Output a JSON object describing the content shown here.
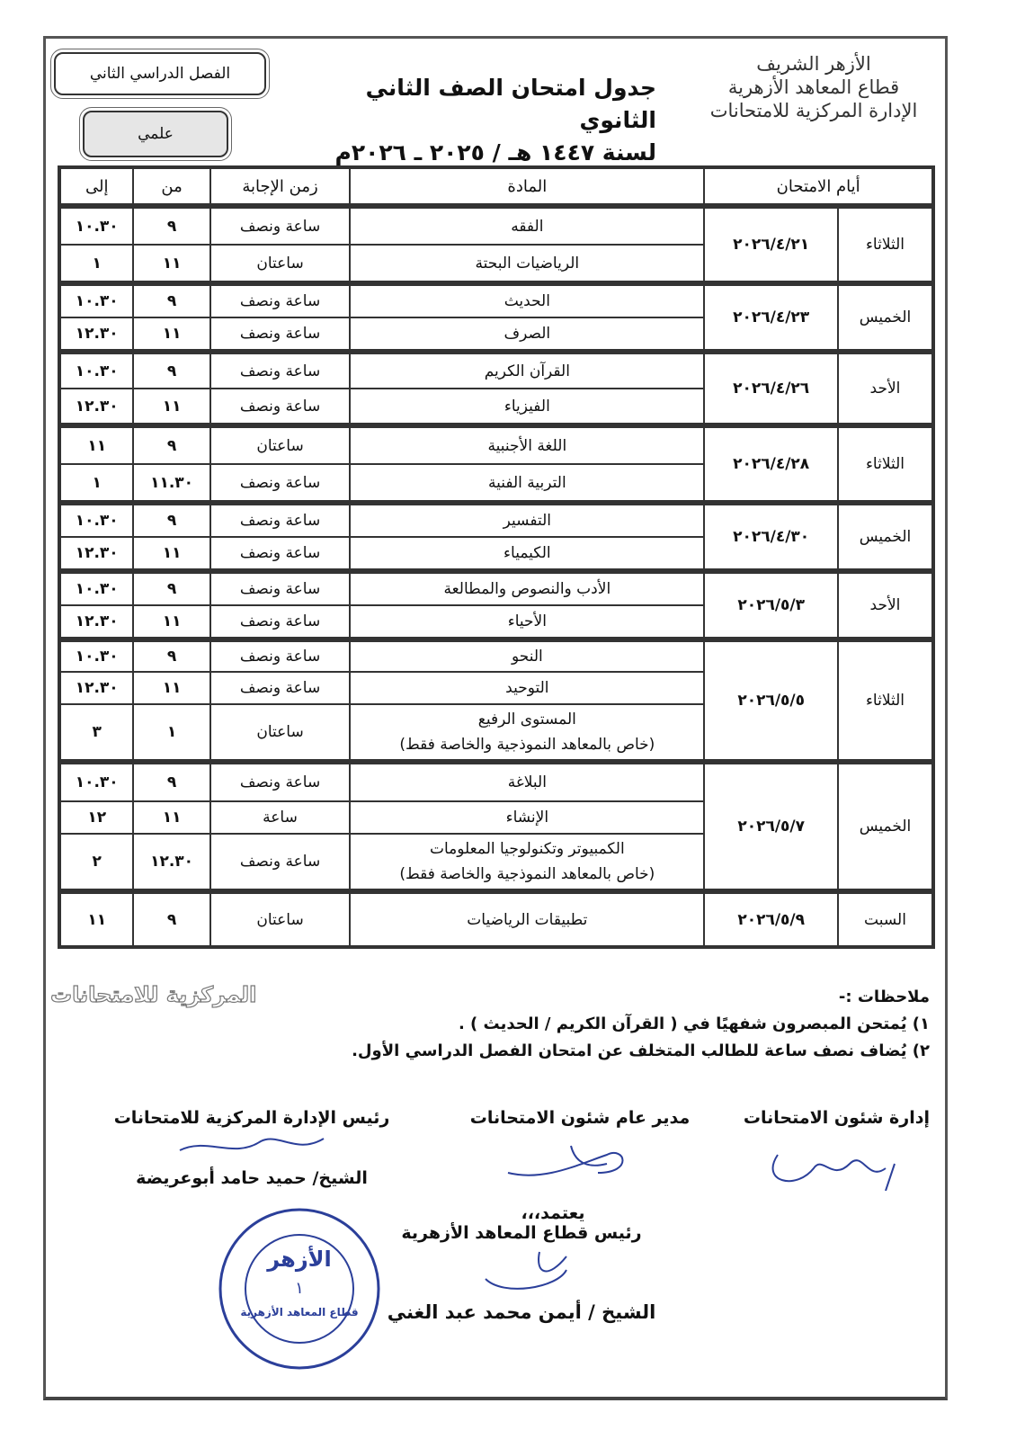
{
  "header": {
    "logo_lines": [
      "الأزهر الشريف",
      "قطاع المعاهد الأزهرية",
      "الإدارة المركزية للامتحانات"
    ],
    "title": "جدول امتحان الصف الثاني الثانوي",
    "year": "لسنة ١٤٤٧ هـ / ٢٠٢٥ ـ ٢٠٢٦م",
    "semester": "الفصل الدراسي الثاني",
    "track": "علمي"
  },
  "table": {
    "columns": {
      "days": "أيام الامتحان",
      "subject": "المادة",
      "duration": "زمن الإجابة",
      "from": "من",
      "to": "إلى"
    },
    "groups": [
      {
        "day": "الثلاثاء",
        "date": "٢٠٢٦/٤/٢١",
        "rows": [
          {
            "subject": "الفقه",
            "duration": "ساعة ونصف",
            "from": "٩",
            "to": "١٠.٣٠"
          },
          {
            "subject": "الرياضيات البحتة",
            "duration": "ساعتان",
            "from": "١١",
            "to": "١"
          }
        ]
      },
      {
        "day": "الخميس",
        "date": "٢٠٢٦/٤/٢٣",
        "rows": [
          {
            "subject": "الحديث",
            "duration": "ساعة ونصف",
            "from": "٩",
            "to": "١٠.٣٠"
          },
          {
            "subject": "الصرف",
            "duration": "ساعة ونصف",
            "from": "١١",
            "to": "١٢.٣٠"
          }
        ]
      },
      {
        "day": "الأحد",
        "date": "٢٠٢٦/٤/٢٦",
        "rows": [
          {
            "subject": "القرآن الكريم",
            "duration": "ساعة ونصف",
            "from": "٩",
            "to": "١٠.٣٠"
          },
          {
            "subject": "الفيزياء",
            "duration": "ساعة ونصف",
            "from": "١١",
            "to": "١٢.٣٠"
          }
        ]
      },
      {
        "day": "الثلاثاء",
        "date": "٢٠٢٦/٤/٢٨",
        "rows": [
          {
            "subject": "اللغة الأجنبية",
            "duration": "ساعتان",
            "from": "٩",
            "to": "١١"
          },
          {
            "subject": "التربية الفنية",
            "duration": "ساعة ونصف",
            "from": "١١.٣٠",
            "to": "١"
          }
        ]
      },
      {
        "day": "الخميس",
        "date": "٢٠٢٦/٤/٣٠",
        "rows": [
          {
            "subject": "التفسير",
            "duration": "ساعة ونصف",
            "from": "٩",
            "to": "١٠.٣٠"
          },
          {
            "subject": "الكيمياء",
            "duration": "ساعة ونصف",
            "from": "١١",
            "to": "١٢.٣٠"
          }
        ]
      },
      {
        "day": "الأحد",
        "date": "٢٠٢٦/٥/٣",
        "rows": [
          {
            "subject": "الأدب والنصوص والمطالعة",
            "duration": "ساعة ونصف",
            "from": "٩",
            "to": "١٠.٣٠"
          },
          {
            "subject": "الأحياء",
            "duration": "ساعة ونصف",
            "from": "١١",
            "to": "١٢.٣٠"
          }
        ]
      },
      {
        "day": "الثلاثاء",
        "date": "٢٠٢٦/٥/٥",
        "rows": [
          {
            "subject": "النحو",
            "duration": "ساعة ونصف",
            "from": "٩",
            "to": "١٠.٣٠"
          },
          {
            "subject": "التوحيد",
            "duration": "ساعة ونصف",
            "from": "١١",
            "to": "١٢.٣٠"
          },
          {
            "subject": "المستوى الرفيع",
            "note": "(خاص بالمعاهد النموذجية والخاصة فقط)",
            "duration": "ساعتان",
            "from": "١",
            "to": "٣"
          }
        ]
      },
      {
        "day": "الخميس",
        "date": "٢٠٢٦/٥/٧",
        "rows": [
          {
            "subject": "البلاغة",
            "duration": "ساعة ونصف",
            "from": "٩",
            "to": "١٠.٣٠"
          },
          {
            "subject": "الإنشاء",
            "duration": "ساعة",
            "from": "١١",
            "to": "١٢"
          },
          {
            "subject": "الكمبيوتر وتكنولوجيا المعلومات",
            "note": "(خاص بالمعاهد النموذجية والخاصة فقط)",
            "duration": "ساعة ونصف",
            "from": "١٢.٣٠",
            "to": "٢"
          }
        ]
      },
      {
        "day": "السبت",
        "date": "٢٠٢٦/٥/٩",
        "rows": [
          {
            "subject": "تطبيقات الرياضيات",
            "duration": "ساعتان",
            "from": "٩",
            "to": "١١"
          }
        ]
      }
    ]
  },
  "watermark": "المركزية للامتحانات",
  "notes": {
    "heading": "ملاحظات :-",
    "items": [
      "١) يُمتحن المبصرون شفهيًا في ( القرآن الكريم / الحديث ) .",
      "٢) يُضاف نصف ساعة للطالب المتخلف عن امتحان الفصل الدراسي الأول."
    ]
  },
  "signatures": {
    "exams_affairs": "إدارة شئون الامتحانات",
    "general_manager": "مدير عام شئون الامتحانات",
    "central_head": "رئيس الإدارة المركزية للامتحانات",
    "central_head_name": "الشيخ/ حميد حامد أبوعريضة",
    "approve": "يعتمد،،،",
    "sector_head": "رئيس قطاع المعاهد الأزهرية",
    "sector_head_name": "الشيخ / أيمن محمد عبد الغني"
  },
  "stamp": {
    "text": "الأزهر - قطاع المعاهد الأزهرية - الإدارة المركزية للامتحانات"
  },
  "colors": {
    "ink": "#111111",
    "signature_ink": "#2b3f9a",
    "track_fill": "#e6e6e6"
  }
}
